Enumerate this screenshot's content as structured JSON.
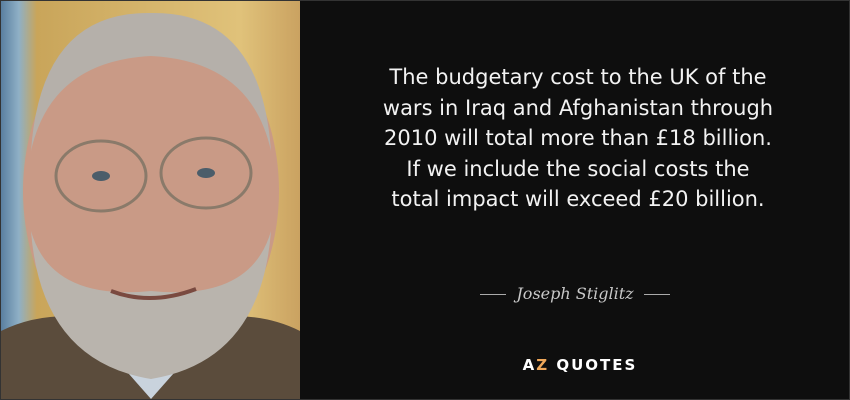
{
  "quote": {
    "lines": [
      "The budgetary cost to the UK of the",
      "wars in Iraq and Afghanistan through",
      "2010 will total more than £18 billion.",
      "If we include the social costs the",
      "total impact will exceed £20 billion."
    ]
  },
  "author": "Joseph Stiglitz",
  "logo": {
    "a": "A",
    "z": "Z",
    "rest": " QUOTES",
    "accent_color": "#f0a85a"
  },
  "colors": {
    "background": "#0e0e0e",
    "text": "#f2f2f2"
  }
}
